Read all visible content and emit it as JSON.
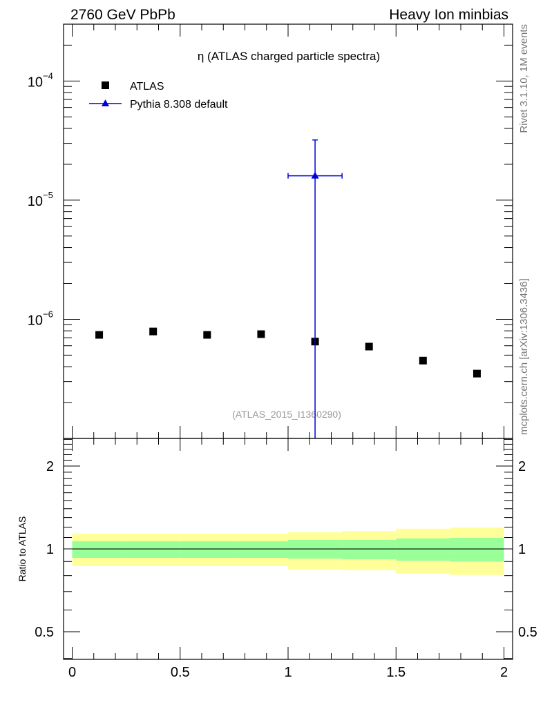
{
  "header": {
    "left": "2760 GeV PbPb",
    "right": "Heavy Ion minbias"
  },
  "side_labels": {
    "rivet": "Rivet 3.1.10,  1M events",
    "mcplots": "mcplots.cern.ch [arXiv:1306.3436]"
  },
  "chart_data": [
    {
      "type": "scatter",
      "title": "η (ATLAS charged particle spectra)",
      "watermark": "(ATLAS_2015_I1360290)",
      "yscale": "log",
      "xlim": [
        -0.04,
        2.04
      ],
      "ylim": [
        1e-07,
        0.0003
      ],
      "y_ticks": [
        {
          "value": 0.0001,
          "base": "10",
          "exp": "−4"
        },
        {
          "value": 1e-05,
          "base": "10",
          "exp": "−5"
        },
        {
          "value": 1e-06,
          "base": "10",
          "exp": "−6"
        }
      ],
      "legend": {
        "placement": "top-left",
        "entries": [
          "ATLAS",
          "Pythia 8.308 default"
        ]
      },
      "series": [
        {
          "name": "ATLAS",
          "marker": "square",
          "color": "#000000",
          "x": [
            0.125,
            0.375,
            0.625,
            0.875,
            1.125,
            1.375,
            1.625,
            1.875
          ],
          "y": [
            7.4e-07,
            7.9e-07,
            7.4e-07,
            7.5e-07,
            6.5e-07,
            5.9e-07,
            4.5e-07,
            3.5e-07
          ]
        },
        {
          "name": "Pythia 8.308 default",
          "marker": "triangle",
          "color": "#0000dd",
          "x": [
            1.125
          ],
          "y": [
            1.6e-05
          ],
          "xerr": [
            [
              1.0,
              1.25
            ]
          ],
          "yerr": [
            [
              0,
              3.2e-05
            ]
          ]
        }
      ]
    },
    {
      "type": "area",
      "ylabel": "Ratio to ATLAS",
      "yscale": "log",
      "xlim": [
        -0.04,
        2.04
      ],
      "ylim": [
        0.397,
        2.52
      ],
      "y_ticks": [
        {
          "value": 2,
          "label": "2"
        },
        {
          "value": 1,
          "label": "1"
        },
        {
          "value": 0.5,
          "label": "0.5"
        }
      ],
      "x_ticks": [
        {
          "value": 0,
          "label": "0"
        },
        {
          "value": 0.5,
          "label": "0.5"
        },
        {
          "value": 1,
          "label": "1"
        },
        {
          "value": 1.5,
          "label": "1.5"
        },
        {
          "value": 2,
          "label": "2"
        }
      ],
      "bin_edges": [
        0,
        0.25,
        0.5,
        0.75,
        1.0,
        1.25,
        1.5,
        1.75,
        2.0
      ],
      "stat_band": {
        "color": "#99ff99",
        "lo": [
          0.928,
          0.928,
          0.928,
          0.928,
          0.922,
          0.917,
          0.906,
          0.9
        ],
        "hi": [
          1.066,
          1.066,
          1.066,
          1.066,
          1.078,
          1.078,
          1.092,
          1.097
        ]
      },
      "total_band": {
        "color": "#ffff99",
        "lo": [
          0.866,
          0.866,
          0.866,
          0.866,
          0.842,
          0.837,
          0.814,
          0.804
        ],
        "hi": [
          1.135,
          1.135,
          1.135,
          1.135,
          1.149,
          1.162,
          1.184,
          1.196
        ]
      }
    }
  ]
}
